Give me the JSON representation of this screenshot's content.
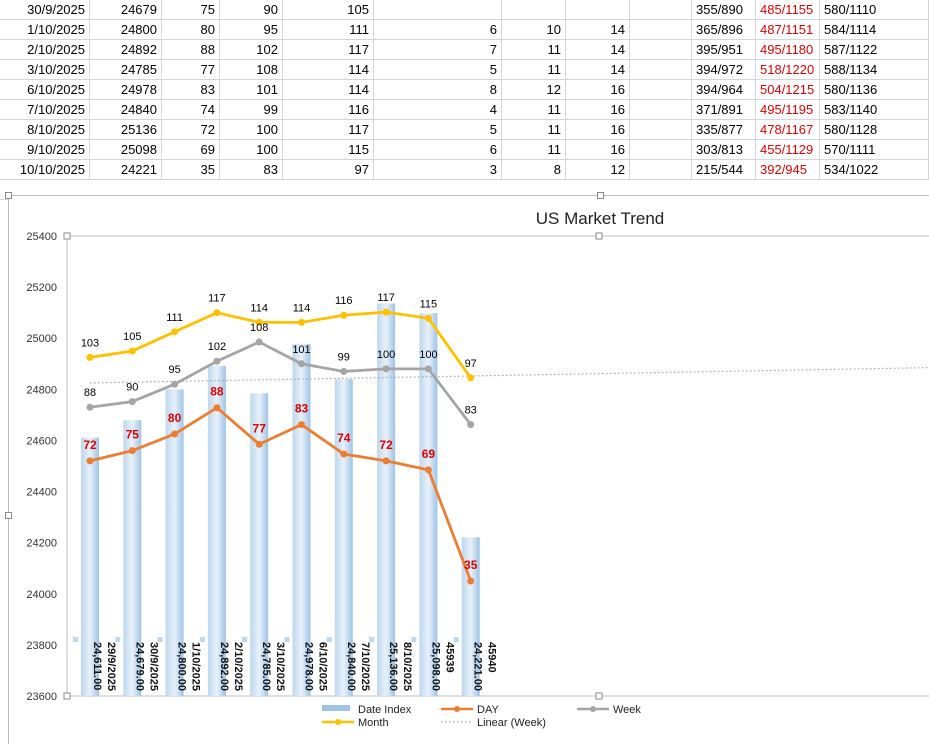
{
  "spreadsheet": {
    "rows": [
      {
        "date": "30/9/2025",
        "index": "24679",
        "day": "75",
        "week": "90",
        "month": "105",
        "c6": "",
        "c7": "",
        "c8": "",
        "c9": "355/890",
        "c10": "485/1155",
        "c11": "580/1110"
      },
      {
        "date": "1/10/2025",
        "index": "24800",
        "day": "80",
        "week": "95",
        "month": "111",
        "c6": "6",
        "c7": "10",
        "c8": "14",
        "c9": "365/896",
        "c10": "487/1151",
        "c11": "584/1114"
      },
      {
        "date": "2/10/2025",
        "index": "24892",
        "day": "88",
        "week": "102",
        "month": "117",
        "c6": "7",
        "c7": "11",
        "c8": "14",
        "c9": "395/951",
        "c10": "495/1180",
        "c11": "587/1122"
      },
      {
        "date": "3/10/2025",
        "index": "24785",
        "day": "77",
        "week": "108",
        "month": "114",
        "c6": "5",
        "c7": "11",
        "c8": "14",
        "c9": "394/972",
        "c10": "518/1220",
        "c11": "588/1134"
      },
      {
        "date": "6/10/2025",
        "index": "24978",
        "day": "83",
        "week": "101",
        "month": "114",
        "c6": "8",
        "c7": "12",
        "c8": "16",
        "c9": "394/964",
        "c10": "504/1215",
        "c11": "580/1136"
      },
      {
        "date": "7/10/2025",
        "index": "24840",
        "day": "74",
        "week": "99",
        "month": "116",
        "c6": "4",
        "c7": "11",
        "c8": "16",
        "c9": "371/891",
        "c10": "495/1195",
        "c11": "583/1140"
      },
      {
        "date": "8/10/2025",
        "index": "25136",
        "day": "72",
        "week": "100",
        "month": "117",
        "c6": "5",
        "c7": "11",
        "c8": "16",
        "c9": "335/877",
        "c10": "478/1167",
        "c11": "580/1128"
      },
      {
        "date": "9/10/2025",
        "index": "25098",
        "day": "69",
        "week": "100",
        "month": "115",
        "c6": "6",
        "c7": "11",
        "c8": "16",
        "c9": "303/813",
        "c10": "455/1129",
        "c11": "570/1111"
      },
      {
        "date": "10/10/2025",
        "index": "24221",
        "day": "35",
        "week": "83",
        "month": "97",
        "c6": "3",
        "c7": "8",
        "c8": "12",
        "c9": "215/544",
        "c10": "392/945",
        "c11": "534/1022"
      }
    ]
  },
  "chart_data": {
    "type": "bar",
    "title": "US Market Trend",
    "ylim": [
      23600,
      25400
    ],
    "yticks": [
      "23600",
      "23800",
      "24000",
      "24200",
      "24400",
      "24600",
      "24800",
      "25000",
      "25200",
      "25400"
    ],
    "categories": [
      "29/9/2025",
      "30/9/2025",
      "1/10/2025",
      "2/10/2025",
      "3/10/2025",
      "6/10/2025",
      "7/10/2025",
      "8/10/2025",
      "45939",
      "45940"
    ],
    "bar_labels": [
      "24,611.00",
      "24,679.00",
      "24,800.00",
      "24,892.00",
      "24,785.00",
      "24,978.00",
      "24,840.00",
      "25,136.00",
      "25,098.00",
      "24,221.00"
    ],
    "bars": [
      24611,
      24679,
      24800,
      24892,
      24785,
      24978,
      24840,
      25136,
      25098,
      24221
    ],
    "series": [
      {
        "name": "DAY",
        "values": [
          72,
          75,
          80,
          88,
          77,
          83,
          74,
          72,
          69,
          35
        ],
        "positions": [
          24520,
          24560,
          24625,
          24728,
          24585,
          24662,
          24547,
          24520,
          24485,
          24050
        ],
        "color": "#ed7d31",
        "label_color": "#e00000"
      },
      {
        "name": "Week",
        "values": [
          88,
          90,
          95,
          102,
          108,
          101,
          99,
          100,
          100,
          83
        ],
        "positions": [
          24730,
          24752,
          24820,
          24910,
          24985,
          24900,
          24870,
          24880,
          24880,
          24662
        ],
        "color": "#a5a5a5",
        "label_color": "#000000"
      },
      {
        "name": "Month",
        "values": [
          103,
          105,
          111,
          117,
          114,
          114,
          116,
          117,
          115,
          97
        ],
        "positions": [
          24925,
          24950,
          25025,
          25100,
          25062,
          25062,
          25090,
          25102,
          25078,
          24845
        ],
        "color": "#ffc000",
        "label_color": "#000000"
      }
    ],
    "trendline": {
      "name": "Linear (Week)",
      "start": 24825,
      "end": 24885,
      "color": "#a0a0a0"
    },
    "legend": {
      "position": "bottom",
      "items": [
        {
          "label": "Date Index",
          "kind": "bar",
          "color": "#9dc3e6"
        },
        {
          "label": "DAY",
          "kind": "line",
          "color": "#ed7d31"
        },
        {
          "label": "Week",
          "kind": "line",
          "color": "#a5a5a5"
        },
        {
          "label": "Month",
          "kind": "line",
          "color": "#ffc000"
        },
        {
          "label": "Linear (Week)",
          "kind": "dotted",
          "color": "#a0a0a0"
        }
      ]
    }
  }
}
